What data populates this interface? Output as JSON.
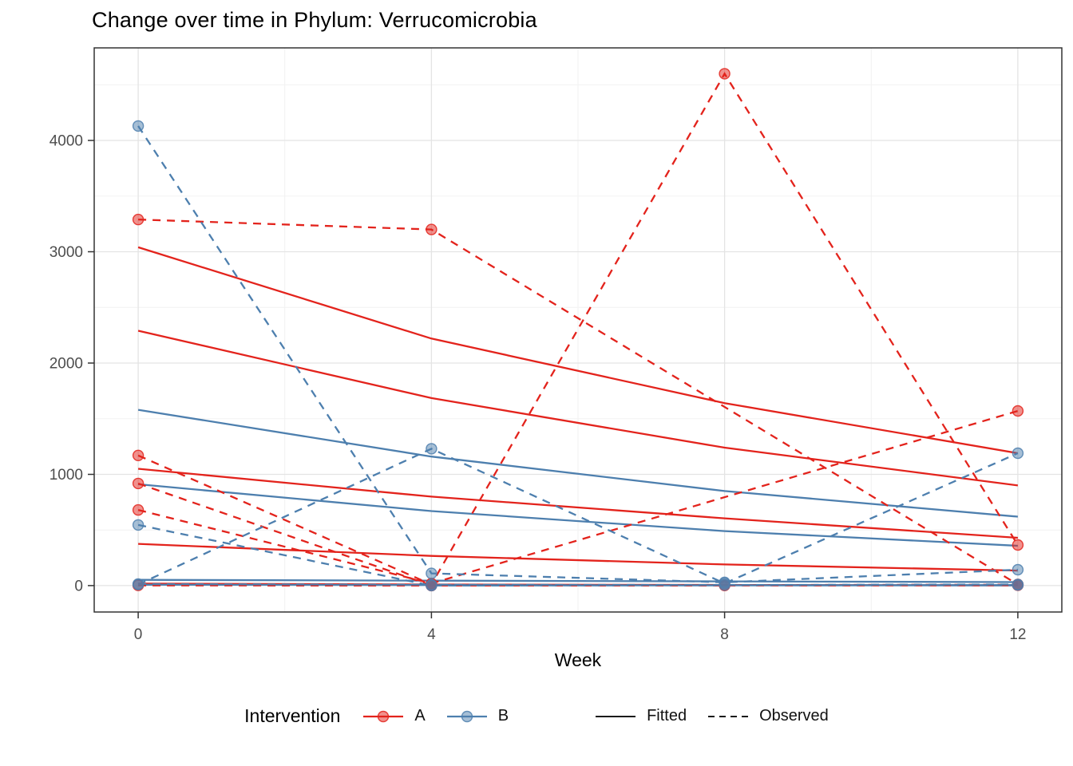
{
  "colors": {
    "a": "#e3231c",
    "b": "#4d7fae",
    "grid_major": "#e4e4e4",
    "grid_minor": "#f2f2f2",
    "panel_border": "#333333",
    "tick_mark": "#333333",
    "tick_text": "#4d4d4d",
    "title_text": "#000000",
    "axis_title_text": "#000000",
    "key_line": "#1a1a1a",
    "panel_bg": "#ffffff"
  },
  "chart_data": {
    "type": "line",
    "title": "Change over time in Phylum: Verrucomicrobia",
    "xlabel": "Week",
    "ylabel": "",
    "grid": "on",
    "x": [
      0,
      4,
      8,
      12
    ],
    "xlim": [
      -0.6,
      12.6
    ],
    "ylim": [
      -237,
      4832
    ],
    "x_ticks": {
      "values": [
        0,
        4,
        8,
        12
      ],
      "labels": [
        "0",
        "4",
        "8",
        "12"
      ]
    },
    "y_ticks": {
      "values": [
        0,
        1000,
        2000,
        3000,
        4000
      ],
      "labels": [
        "0",
        "1000",
        "2000",
        "3000",
        "4000"
      ]
    },
    "x_minor": [
      2,
      6,
      10
    ],
    "y_minor": [
      500,
      1500,
      2500,
      3500,
      4500
    ],
    "series": [
      {
        "name": "A-subj1-observed",
        "group": "A",
        "linetype": "observed",
        "values": [
          3290,
          3200,
          null,
          10
        ]
      },
      {
        "name": "A-subj2-observed",
        "group": "A",
        "linetype": "observed",
        "values": [
          1170,
          10,
          4600,
          365
        ]
      },
      {
        "name": "A-subj3-observed",
        "group": "A",
        "linetype": "observed",
        "values": [
          918,
          2,
          5,
          8
        ]
      },
      {
        "name": "A-subj4-observed",
        "group": "A",
        "linetype": "observed",
        "values": [
          680,
          20,
          null,
          1570
        ]
      },
      {
        "name": "A-subj5-observed",
        "group": "A",
        "linetype": "observed",
        "values": [
          2,
          0,
          1,
          3
        ]
      },
      {
        "name": "B-subj1-observed",
        "group": "B",
        "linetype": "observed",
        "values": [
          4130,
          110,
          30,
          143
        ]
      },
      {
        "name": "B-subj2-observed",
        "group": "B",
        "linetype": "observed",
        "values": [
          10,
          1230,
          20,
          1190
        ]
      },
      {
        "name": "B-subj3-observed",
        "group": "B",
        "linetype": "observed",
        "values": [
          545,
          0,
          null,
          5
        ]
      },
      {
        "name": "B-subj4-observed",
        "group": "B",
        "linetype": "observed",
        "values": [
          14,
          8,
          5,
          10
        ]
      },
      {
        "name": "A-subj1-fitted",
        "group": "A",
        "linetype": "fitted",
        "values": [
          3040,
          2220,
          1640,
          1190
        ]
      },
      {
        "name": "A-subj2-fitted",
        "group": "A",
        "linetype": "fitted",
        "values": [
          2290,
          1685,
          1240,
          900
        ]
      },
      {
        "name": "A-subj3-fitted",
        "group": "A",
        "linetype": "fitted",
        "values": [
          1050,
          800,
          605,
          430
        ]
      },
      {
        "name": "A-subj4-fitted",
        "group": "A",
        "linetype": "fitted",
        "values": [
          375,
          267,
          190,
          135
        ]
      },
      {
        "name": "A-subj5-fitted",
        "group": "A",
        "linetype": "fitted",
        "values": [
          18,
          10,
          6,
          3
        ]
      },
      {
        "name": "B-subj1-fitted",
        "group": "B",
        "linetype": "fitted",
        "values": [
          1580,
          1160,
          850,
          620
        ]
      },
      {
        "name": "B-subj2-fitted",
        "group": "B",
        "linetype": "fitted",
        "values": [
          911,
          670,
          490,
          358
        ]
      },
      {
        "name": "B-subj3-fitted",
        "group": "B",
        "linetype": "fitted",
        "values": [
          52,
          45,
          38,
          32
        ]
      },
      {
        "name": "B-subj4-fitted",
        "group": "B",
        "linetype": "fitted",
        "values": [
          8,
          5,
          3,
          2
        ]
      }
    ],
    "legend": {
      "title": "Intervention",
      "position": "bottom",
      "groups": [
        {
          "label": "A",
          "color": "#e3231c"
        },
        {
          "label": "B",
          "color": "#4d7fae"
        }
      ],
      "linetypes": [
        {
          "label": "Fitted",
          "style": "solid"
        },
        {
          "label": "Observed",
          "style": "dashed"
        }
      ]
    }
  }
}
